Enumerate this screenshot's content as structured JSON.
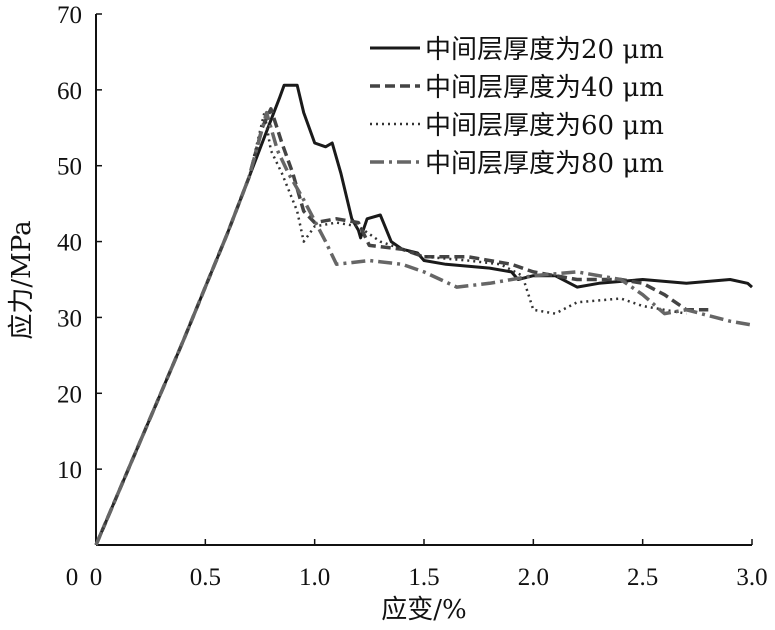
{
  "chart_data": {
    "type": "line",
    "xlabel": "应变/%",
    "ylabel": "应力/MPa",
    "xlim": [
      0,
      3.0
    ],
    "ylim": [
      0,
      70
    ],
    "xticks": [
      "0",
      "0.5",
      "1.0",
      "1.5",
      "2.0",
      "2.5",
      "3.0"
    ],
    "xtick_values": [
      0,
      0.5,
      1.0,
      1.5,
      2.0,
      2.5,
      3.0
    ],
    "yticks": [
      "10",
      "20",
      "30",
      "40",
      "50",
      "60",
      "70"
    ],
    "ytick_values": [
      10,
      20,
      30,
      40,
      50,
      60,
      70
    ],
    "legend_position": "top-right",
    "series": [
      {
        "name": "中间层厚度为20 μm",
        "style": "solid",
        "color": "#1a1a1a",
        "points": [
          [
            0,
            0
          ],
          [
            0.2,
            13.5
          ],
          [
            0.4,
            27
          ],
          [
            0.5,
            34
          ],
          [
            0.6,
            41
          ],
          [
            0.7,
            48.5
          ],
          [
            0.8,
            56
          ],
          [
            0.84,
            59
          ],
          [
            0.86,
            60.6
          ],
          [
            0.92,
            60.6
          ],
          [
            0.95,
            57
          ],
          [
            1.0,
            53
          ],
          [
            1.05,
            52.5
          ],
          [
            1.08,
            53
          ],
          [
            1.12,
            49
          ],
          [
            1.17,
            43
          ],
          [
            1.2,
            41.5
          ],
          [
            1.21,
            40.5
          ],
          [
            1.24,
            43
          ],
          [
            1.3,
            43.5
          ],
          [
            1.35,
            40
          ],
          [
            1.4,
            39
          ],
          [
            1.47,
            38.5
          ],
          [
            1.5,
            37.5
          ],
          [
            1.6,
            37
          ],
          [
            1.8,
            36.5
          ],
          [
            1.9,
            36
          ],
          [
            1.93,
            35
          ],
          [
            2.0,
            35.5
          ],
          [
            2.1,
            35.5
          ],
          [
            2.2,
            34
          ],
          [
            2.3,
            34.5
          ],
          [
            2.5,
            35
          ],
          [
            2.7,
            34.5
          ],
          [
            2.9,
            35
          ],
          [
            2.98,
            34.5
          ],
          [
            3.0,
            34
          ]
        ]
      },
      {
        "name": "中间层厚度为40 μm",
        "style": "dashed",
        "color": "#444444",
        "points": [
          [
            0,
            0
          ],
          [
            0.2,
            13.5
          ],
          [
            0.4,
            27
          ],
          [
            0.5,
            34
          ],
          [
            0.6,
            41
          ],
          [
            0.7,
            48.5
          ],
          [
            0.76,
            55
          ],
          [
            0.8,
            57.5
          ],
          [
            0.85,
            53
          ],
          [
            0.9,
            49
          ],
          [
            0.95,
            44
          ],
          [
            1.0,
            42.5
          ],
          [
            1.1,
            43
          ],
          [
            1.2,
            42.5
          ],
          [
            1.25,
            39.5
          ],
          [
            1.4,
            39
          ],
          [
            1.5,
            38
          ],
          [
            1.7,
            38
          ],
          [
            1.9,
            37
          ],
          [
            2.0,
            36
          ],
          [
            2.2,
            35
          ],
          [
            2.4,
            35
          ],
          [
            2.5,
            34.5
          ],
          [
            2.6,
            33
          ],
          [
            2.7,
            31
          ],
          [
            2.8,
            31
          ]
        ]
      },
      {
        "name": "中间层厚度为60 μm",
        "style": "dotted",
        "color": "#333333",
        "points": [
          [
            0,
            0
          ],
          [
            0.2,
            13.5
          ],
          [
            0.4,
            27
          ],
          [
            0.5,
            34
          ],
          [
            0.6,
            41
          ],
          [
            0.7,
            48.5
          ],
          [
            0.77,
            57
          ],
          [
            0.8,
            52
          ],
          [
            0.85,
            49
          ],
          [
            0.92,
            44
          ],
          [
            0.95,
            40
          ],
          [
            1.0,
            42
          ],
          [
            1.1,
            42.5
          ],
          [
            1.2,
            42
          ],
          [
            1.3,
            40
          ],
          [
            1.5,
            38
          ],
          [
            1.7,
            37.5
          ],
          [
            1.85,
            37
          ],
          [
            1.95,
            35.5
          ],
          [
            2.0,
            31
          ],
          [
            2.1,
            30.5
          ],
          [
            2.2,
            32
          ],
          [
            2.4,
            32.5
          ],
          [
            2.5,
            31.5
          ],
          [
            2.6,
            31
          ],
          [
            2.7,
            30.5
          ]
        ]
      },
      {
        "name": "中间层厚度为80 μm",
        "style": "dashdot",
        "color": "#666666",
        "points": [
          [
            0,
            0
          ],
          [
            0.2,
            13.5
          ],
          [
            0.4,
            27
          ],
          [
            0.5,
            34
          ],
          [
            0.6,
            41
          ],
          [
            0.7,
            48.5
          ],
          [
            0.78,
            57
          ],
          [
            0.83,
            52
          ],
          [
            0.88,
            49
          ],
          [
            0.95,
            45.5
          ],
          [
            1.05,
            40
          ],
          [
            1.1,
            37
          ],
          [
            1.25,
            37.5
          ],
          [
            1.4,
            37
          ],
          [
            1.5,
            36
          ],
          [
            1.65,
            34
          ],
          [
            1.8,
            34.5
          ],
          [
            2.0,
            35.5
          ],
          [
            2.2,
            36
          ],
          [
            2.4,
            35
          ],
          [
            2.5,
            33
          ],
          [
            2.6,
            30.5
          ],
          [
            2.7,
            31
          ],
          [
            2.9,
            29.5
          ],
          [
            3.0,
            29
          ]
        ]
      }
    ]
  }
}
